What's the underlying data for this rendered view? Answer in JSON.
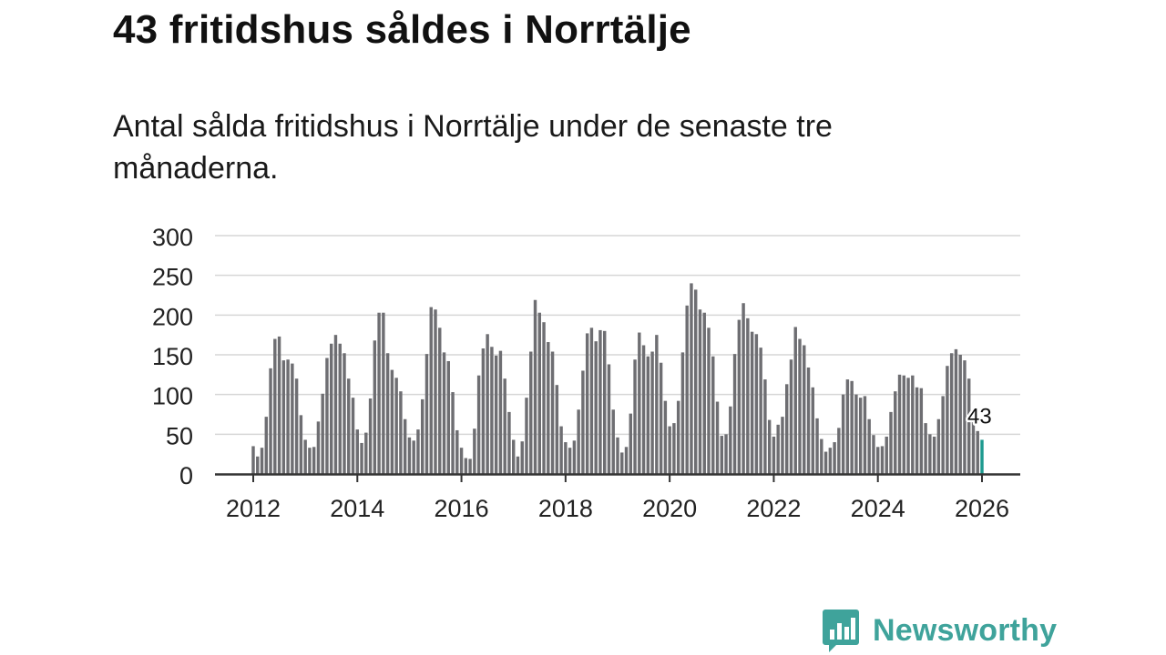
{
  "title": "43 fritidshus såldes i Norrtälje",
  "subtitle": "Antal sålda fritidshus i Norrtälje under de senaste tre månaderna.",
  "brand": {
    "name": "Newsworthy",
    "logo_icon": "bar-chart-speech-bubble-icon",
    "color": "#3fa39b"
  },
  "chart_data": {
    "type": "bar",
    "x_start": "2012-01",
    "x_end": "2026-01",
    "x_ticks": [
      "2012",
      "2014",
      "2016",
      "2018",
      "2020",
      "2022",
      "2024",
      "2026"
    ],
    "y_ticks": [
      "0",
      "50",
      "100",
      "150",
      "200",
      "250",
      "300"
    ],
    "ylim": [
      0,
      300
    ],
    "grid": true,
    "bar_color": "#6e6e72",
    "highlight_color": "#1d9a8f",
    "highlight_label": "43",
    "values": [
      35,
      22,
      33,
      72,
      133,
      170,
      173,
      143,
      144,
      139,
      120,
      74,
      43,
      33,
      34,
      66,
      101,
      146,
      164,
      175,
      164,
      152,
      120,
      96,
      56,
      39,
      52,
      95,
      168,
      203,
      203,
      152,
      131,
      121,
      104,
      69,
      46,
      42,
      56,
      94,
      151,
      210,
      207,
      184,
      153,
      142,
      103,
      55,
      33,
      20,
      19,
      57,
      124,
      158,
      176,
      160,
      149,
      155,
      120,
      78,
      43,
      22,
      41,
      96,
      154,
      219,
      203,
      191,
      166,
      154,
      112,
      60,
      40,
      33,
      42,
      81,
      130,
      177,
      184,
      167,
      181,
      180,
      138,
      81,
      46,
      27,
      34,
      76,
      144,
      178,
      162,
      148,
      154,
      175,
      140,
      92,
      60,
      64,
      92,
      153,
      212,
      240,
      232,
      207,
      203,
      184,
      148,
      91,
      48,
      50,
      85,
      151,
      194,
      215,
      196,
      179,
      176,
      159,
      119,
      68,
      47,
      62,
      72,
      113,
      144,
      185,
      170,
      162,
      134,
      109,
      70,
      44,
      28,
      33,
      40,
      58,
      100,
      119,
      117,
      100,
      96,
      98,
      69,
      49,
      34,
      35,
      47,
      78,
      104,
      125,
      124,
      121,
      124,
      109,
      108,
      64,
      50,
      47,
      69,
      98,
      136,
      152,
      157,
      150,
      143,
      120,
      79,
      54,
      43
    ]
  }
}
